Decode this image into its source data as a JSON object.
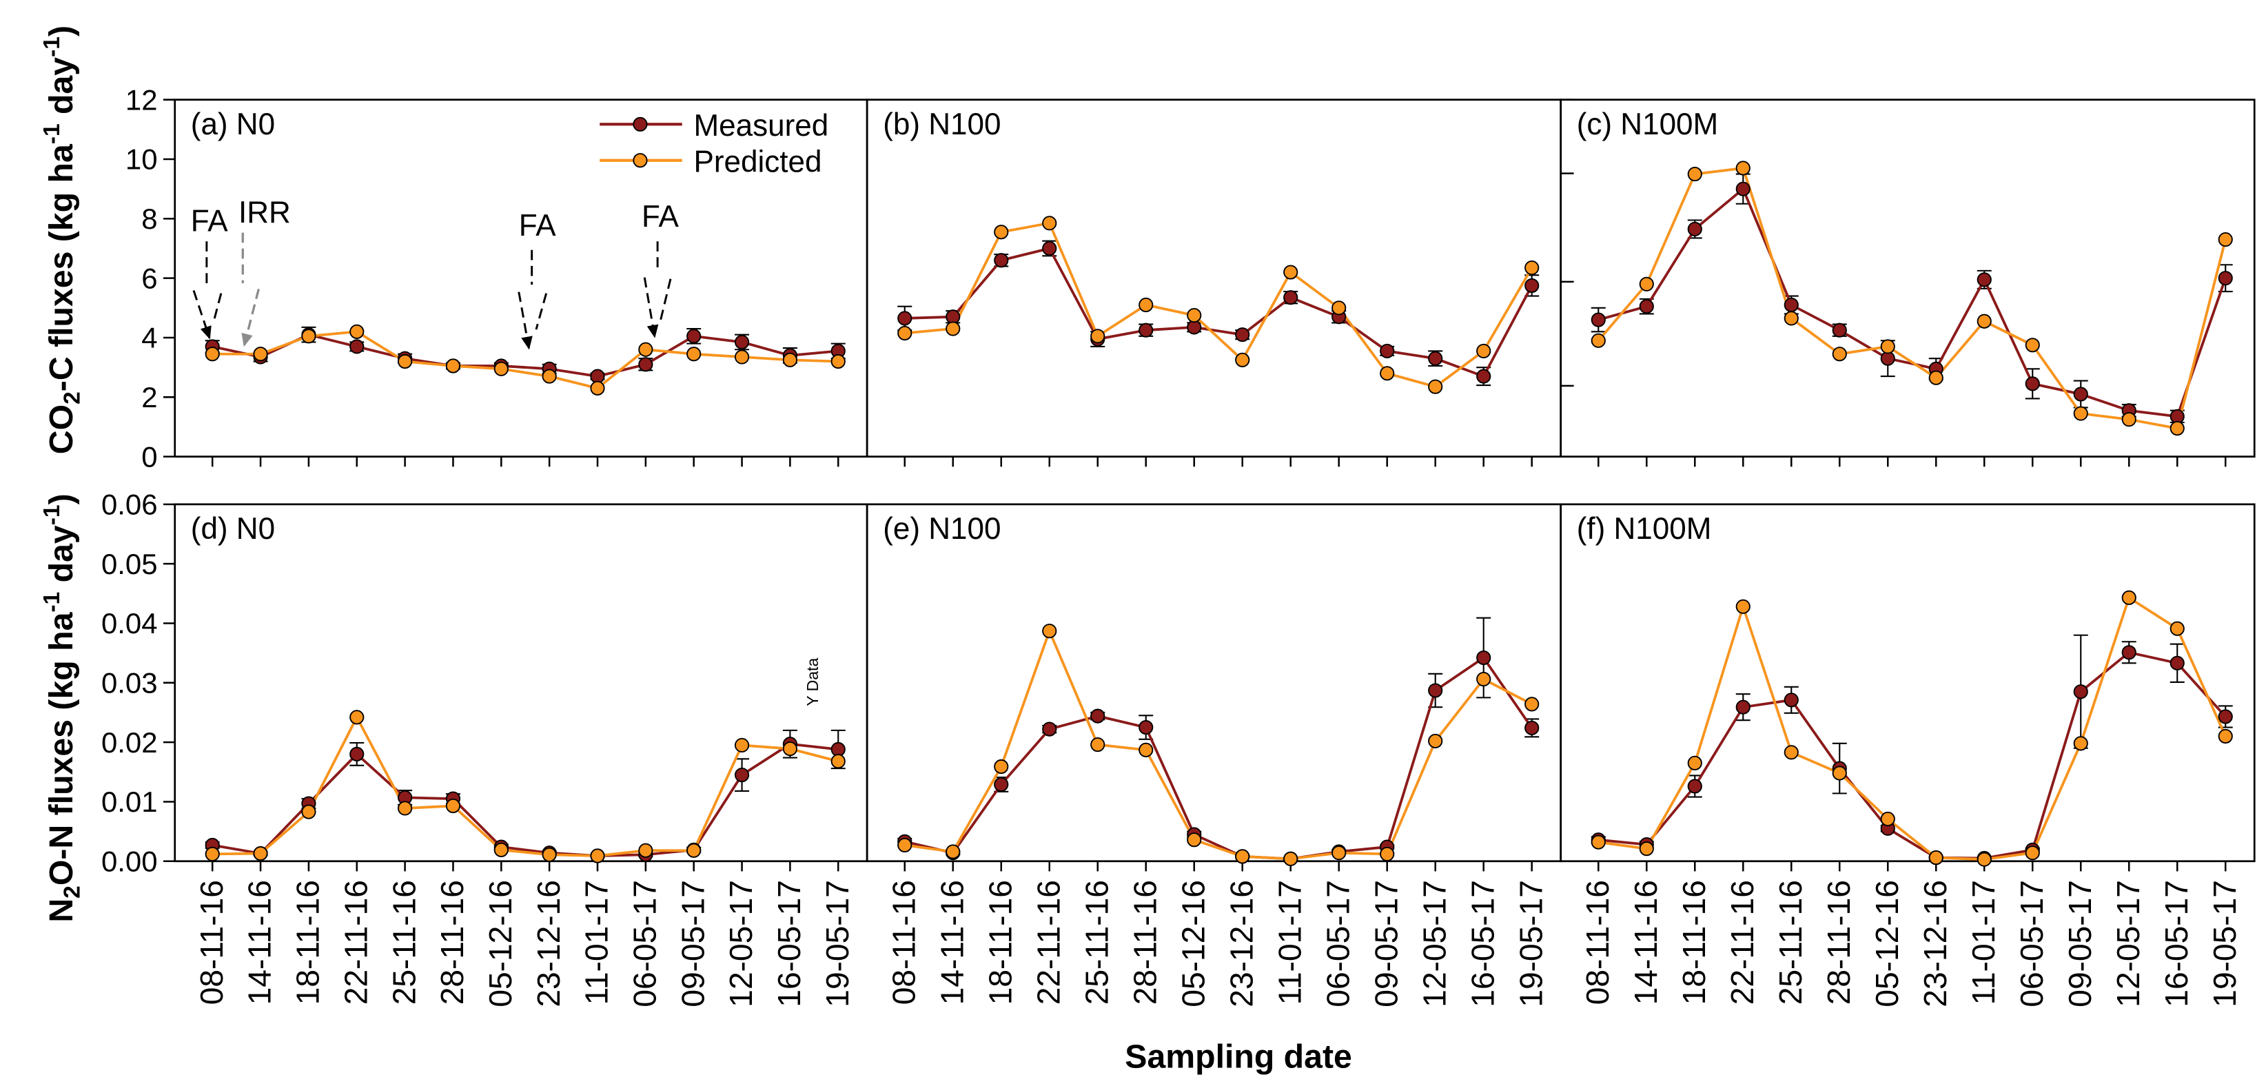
{
  "chart_data": {
    "type": "line",
    "xlabel": "Sampling date",
    "categories": [
      "08-11-16",
      "14-11-16",
      "18-11-16",
      "22-11-16",
      "25-11-16",
      "28-11-16",
      "05-12-16",
      "23-12-16",
      "11-01-17",
      "06-05-17",
      "09-05-17",
      "12-05-17",
      "16-05-17",
      "19-05-17"
    ],
    "legend": [
      {
        "label": "Measured",
        "color": "#8b1a1a"
      },
      {
        "label": "Predicted",
        "color": "#f7941d"
      }
    ],
    "panels": [
      {
        "title": "(a) N0",
        "ylabel": [
          "CO",
          "2",
          "-C fluxes (kg ha",
          "-1",
          " day",
          "-1",
          ")"
        ],
        "ylim": [
          0,
          12
        ],
        "ytick_labels": [
          "0",
          "2",
          "4",
          "6",
          "8",
          "10",
          "12"
        ],
        "measured": {
          "values": [
            3.7,
            3.35,
            4.1,
            3.7,
            3.3,
            3.05,
            3.05,
            2.95,
            2.7,
            3.1,
            4.05,
            3.85,
            3.4,
            3.55
          ],
          "error": [
            0.2,
            0.15,
            0.25,
            0.15,
            0.15,
            0.1,
            0.1,
            0.15,
            0.1,
            0.2,
            0.25,
            0.25,
            0.25,
            0.25
          ]
        },
        "predicted": {
          "values": [
            3.45,
            3.45,
            4.05,
            4.2,
            3.2,
            3.05,
            2.95,
            2.7,
            2.3,
            3.6,
            3.45,
            3.35,
            3.25,
            3.2
          ]
        },
        "annotations": [
          {
            "text": "FA",
            "target_index": 0,
            "color": "#000000"
          },
          {
            "text": "IRR",
            "target_index": 1,
            "color": "#8c8c8c"
          },
          {
            "text": "FA",
            "target_index": 7,
            "color": "#000000"
          },
          {
            "text": "FA",
            "target_index": 9,
            "color": "#000000"
          }
        ]
      },
      {
        "title": "(b) N100",
        "ylim": [
          0,
          12
        ],
        "measured": {
          "values": [
            4.65,
            4.7,
            6.6,
            7.0,
            3.95,
            4.25,
            4.35,
            4.1,
            5.35,
            4.7,
            3.55,
            3.3,
            2.7,
            5.75
          ],
          "error": [
            0.4,
            0.2,
            0.2,
            0.25,
            0.25,
            0.2,
            0.15,
            0.15,
            0.2,
            0.2,
            0.15,
            0.25,
            0.3,
            0.35
          ]
        },
        "predicted": {
          "values": [
            4.15,
            4.3,
            7.55,
            7.85,
            4.05,
            5.1,
            4.75,
            3.25,
            6.2,
            5.0,
            2.8,
            2.35,
            3.55,
            6.35
          ]
        }
      },
      {
        "title": "(c) N100M",
        "ylim": [
          0,
          12
        ],
        "measured": {
          "values": [
            4.6,
            5.05,
            7.65,
            9.0,
            5.1,
            4.25,
            3.3,
            2.95,
            5.95,
            2.45,
            2.1,
            1.55,
            1.35,
            6.0
          ],
          "error": [
            0.4,
            0.25,
            0.3,
            0.5,
            0.3,
            0.2,
            0.6,
            0.35,
            0.3,
            0.5,
            0.45,
            0.2,
            0.2,
            0.45
          ]
        },
        "predicted": {
          "values": [
            3.9,
            5.8,
            9.5,
            9.7,
            4.65,
            3.45,
            3.7,
            2.65,
            4.55,
            3.75,
            1.45,
            1.25,
            0.95,
            7.3
          ]
        }
      },
      {
        "title": "(d) N0",
        "ylabel": [
          "N",
          "2",
          "O-N fluxes (kg ha",
          "-1",
          " day",
          "-1",
          ")"
        ],
        "ylim": [
          0,
          0.06
        ],
        "ytick_labels": [
          "0.00",
          "0.01",
          "0.02",
          "0.03",
          "0.04",
          "0.05",
          "0.06"
        ],
        "measured": {
          "values": [
            0.0027,
            0.0013,
            0.0097,
            0.018,
            0.0107,
            0.0105,
            0.0024,
            0.0014,
            0.0009,
            0.0011,
            0.0019,
            0.0145,
            0.0197,
            0.0188
          ],
          "error": [
            0.0005,
            0.0003,
            0.0008,
            0.0019,
            0.0012,
            0.0008,
            0.0004,
            0.0003,
            0.0002,
            0.0003,
            0.0004,
            0.0027,
            0.0023,
            0.0032
          ]
        },
        "predicted": {
          "values": [
            0.0012,
            0.0013,
            0.0083,
            0.0242,
            0.0089,
            0.0093,
            0.0019,
            0.0011,
            0.0009,
            0.0018,
            0.0018,
            0.0195,
            0.0189,
            0.0168
          ]
        },
        "annotations": [
          {
            "text": "Y Data"
          }
        ]
      },
      {
        "title": "(e) N100",
        "ylim": [
          0,
          0.06
        ],
        "measured": {
          "values": [
            0.0033,
            0.0014,
            0.0129,
            0.0222,
            0.0244,
            0.0225,
            0.0045,
            0.0008,
            0.0004,
            0.0016,
            0.0024,
            0.0287,
            0.0342,
            0.0224
          ],
          "error": [
            0.0005,
            0.0003,
            0.0012,
            0.0006,
            0.0006,
            0.002,
            0.0005,
            0.0002,
            0.0002,
            0.0003,
            0.0003,
            0.0028,
            0.0067,
            0.0015
          ]
        },
        "predicted": {
          "values": [
            0.0027,
            0.0016,
            0.0159,
            0.0387,
            0.0196,
            0.0187,
            0.0036,
            0.0008,
            0.0004,
            0.0014,
            0.0012,
            0.0202,
            0.0306,
            0.0264
          ]
        }
      },
      {
        "title": "(f) N100M",
        "ylim": [
          0,
          0.06
        ],
        "measured": {
          "values": [
            0.0036,
            0.0028,
            0.0126,
            0.0259,
            0.0271,
            0.0156,
            0.0055,
            0.0006,
            0.0005,
            0.0019,
            0.0285,
            0.0351,
            0.0333,
            0.0243
          ],
          "error": [
            0.0005,
            0.0005,
            0.0018,
            0.0022,
            0.0022,
            0.0042,
            0.0005,
            0.0002,
            0.0002,
            0.0003,
            0.0095,
            0.0018,
            0.0032,
            0.0018
          ]
        },
        "predicted": {
          "values": [
            0.0032,
            0.0021,
            0.0165,
            0.0428,
            0.0183,
            0.0148,
            0.0071,
            0.0006,
            0.0003,
            0.0014,
            0.0198,
            0.0443,
            0.0391,
            0.021
          ]
        }
      }
    ]
  }
}
